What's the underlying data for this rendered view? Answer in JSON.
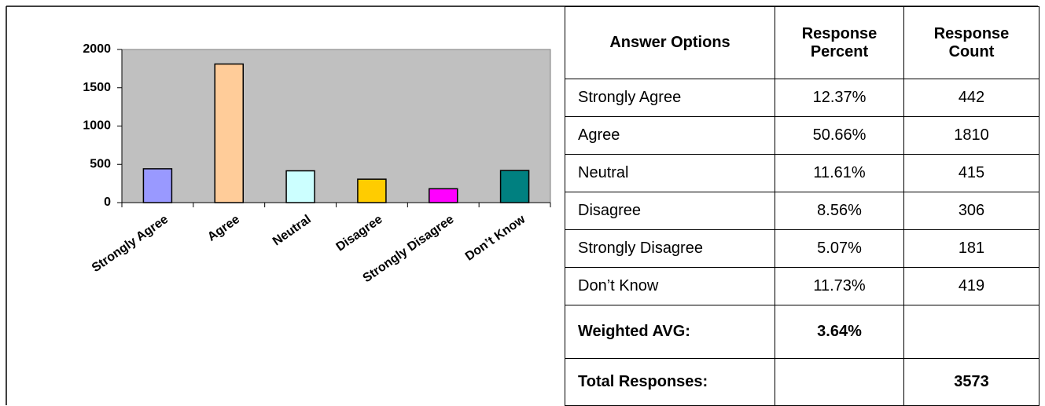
{
  "chart_data": {
    "type": "bar",
    "categories": [
      "Strongly Agree",
      "Agree",
      "Neutral",
      "Disagree",
      "Strongly Disagree",
      "Don’t Know"
    ],
    "values": [
      442,
      1810,
      415,
      306,
      181,
      419
    ],
    "colors": [
      "#9999ff",
      "#ffcc99",
      "#ccffff",
      "#ffcc00",
      "#ff00ff",
      "#008080"
    ],
    "ylim": [
      0,
      2000
    ],
    "yticks": [
      0,
      500,
      1000,
      1500,
      2000
    ]
  },
  "table": {
    "header": [
      "Answer Options",
      "Response Percent",
      "Response Count"
    ],
    "rows": [
      [
        "Strongly Agree",
        "12.37%",
        "442"
      ],
      [
        "Agree",
        "50.66%",
        "1810"
      ],
      [
        "Neutral",
        "11.61%",
        "415"
      ],
      [
        "Disagree",
        "8.56%",
        "306"
      ],
      [
        "Strongly Disagree",
        "5.07%",
        "181"
      ],
      [
        "Don’t Know",
        "11.73%",
        "419"
      ]
    ],
    "weighted": {
      "label": "Weighted AVG:",
      "percent": "3.64%"
    },
    "total": {
      "label": "Total Responses:",
      "count": "3573"
    }
  }
}
